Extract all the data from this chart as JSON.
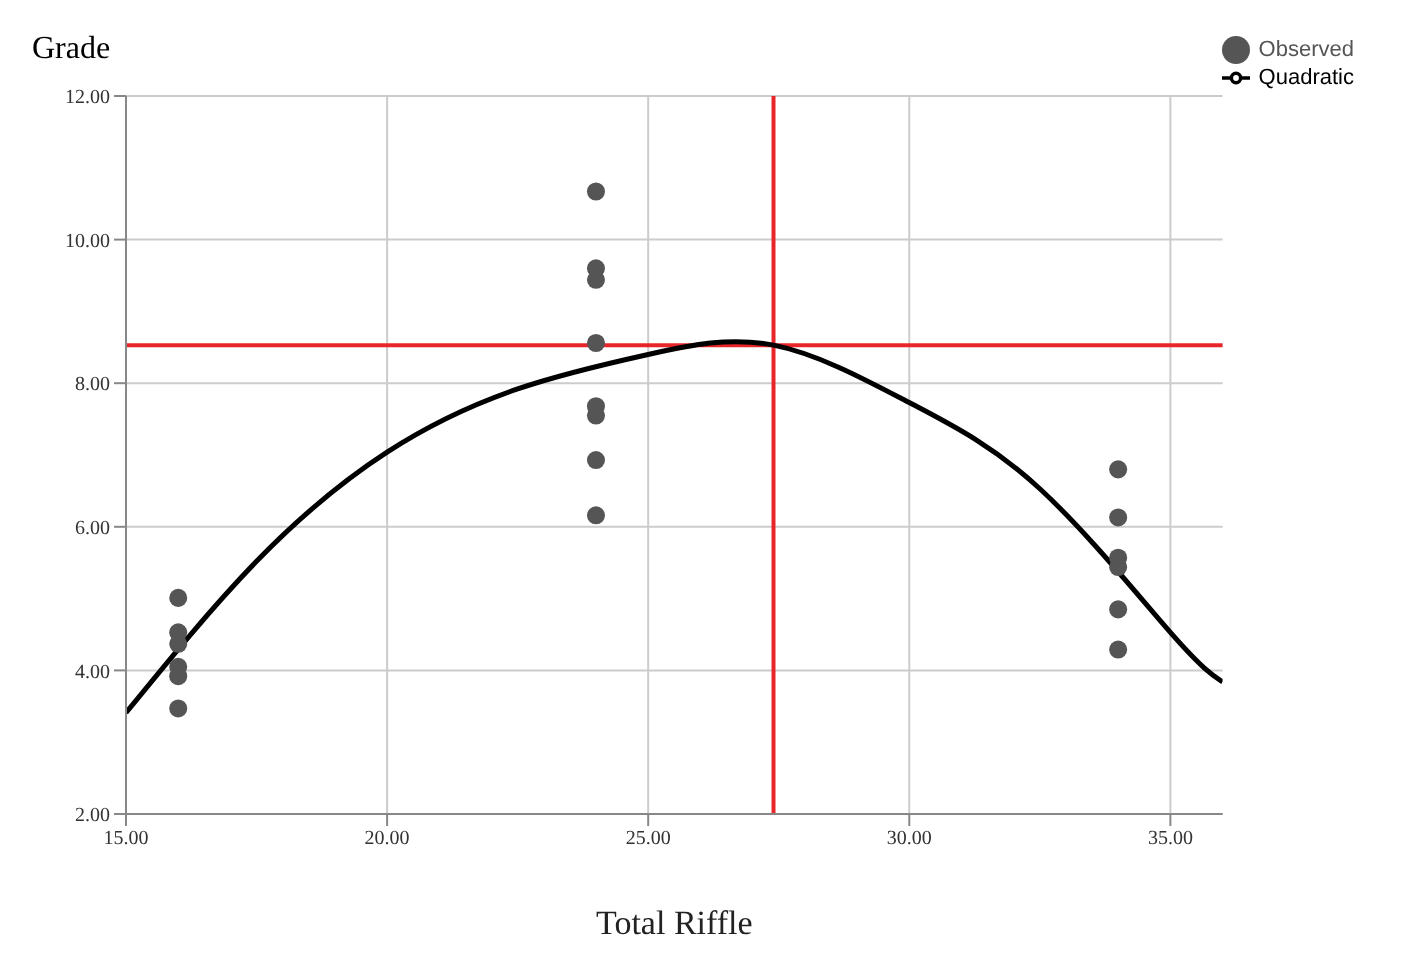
{
  "chart_data": {
    "type": "scatter",
    "ylabel": "Grade",
    "xlabel": "Total Riffle",
    "xlim": [
      15,
      36
    ],
    "xticks": [
      {
        "value": 15,
        "label": "15.00"
      },
      {
        "value": 20,
        "label": "20.00"
      },
      {
        "value": 25,
        "label": "25.00"
      },
      {
        "value": 30,
        "label": "30.00"
      },
      {
        "value": 35,
        "label": "35.00"
      }
    ],
    "ylim": [
      2,
      12
    ],
    "yticks": [
      {
        "value": 2,
        "label": "2.00"
      },
      {
        "value": 4,
        "label": "4.00"
      },
      {
        "value": 6,
        "label": "6.00"
      },
      {
        "value": 8,
        "label": "8.00"
      },
      {
        "value": 10,
        "label": "10.00"
      },
      {
        "value": 12,
        "label": "12.00"
      }
    ],
    "grid": true,
    "legend": "top right",
    "series": [
      {
        "name": "Observed",
        "color": "#555555",
        "marker": "circle",
        "x": [
          16,
          16,
          16,
          16,
          16,
          16,
          24,
          24,
          24,
          24,
          24,
          24,
          24,
          24,
          34,
          34,
          34,
          34,
          34,
          34
        ],
        "values": [
          5.01,
          4.53,
          4.37,
          4.05,
          3.92,
          3.47,
          10.67,
          9.6,
          9.44,
          8.56,
          7.68,
          7.55,
          6.93,
          6.16,
          6.8,
          6.13,
          5.57,
          5.44,
          4.85,
          4.29
        ]
      },
      {
        "name": "Quadratic",
        "type": "line",
        "color": "#000000",
        "marker": "none",
        "x": [
          15,
          17.5,
          20,
          22.5,
          25,
          27.4,
          30,
          32.5,
          35,
          36
        ],
        "values": [
          3.41,
          5.52,
          7.04,
          7.92,
          8.4,
          8.53,
          7.73,
          6.53,
          4.53,
          3.84
        ]
      }
    ],
    "ref_lines": [
      {
        "axis": "x",
        "value": 27.4,
        "color": "#e8262a"
      },
      {
        "axis": "y",
        "value": 8.53,
        "color": "#e8262a"
      }
    ]
  }
}
